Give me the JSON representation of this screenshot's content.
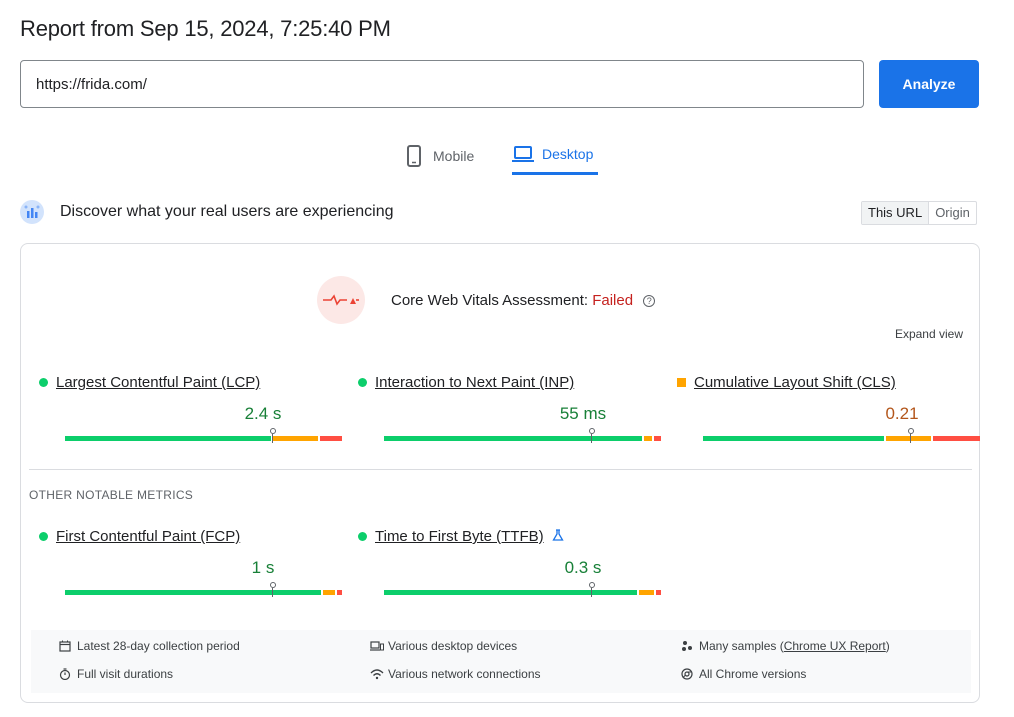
{
  "header": {
    "title": "Report from Sep 15, 2024, 7:25:40 PM"
  },
  "search": {
    "value": "https://frida.com/",
    "analyze_label": "Analyze"
  },
  "tabs": [
    {
      "label": "Mobile",
      "icon": "phone-icon",
      "active": false
    },
    {
      "label": "Desktop",
      "icon": "laptop-icon",
      "active": true
    }
  ],
  "discover": {
    "text": "Discover what your real users are experiencing",
    "icon": "users-chart-icon"
  },
  "scope_toggle": {
    "options": [
      "This URL",
      "Origin"
    ],
    "selected": "This URL"
  },
  "assessment": {
    "label": "Core Web Vitals Assessment:",
    "status": "Failed",
    "status_color": "#c5221f"
  },
  "expand_label": "Expand view",
  "core_metrics": [
    {
      "name": "Largest Contentful Paint (LCP)",
      "value": "2.4 s",
      "rating": "good",
      "distribution": {
        "good": 0.75,
        "needs_improvement": 0.17,
        "poor": 0.08
      },
      "p75": 0.75
    },
    {
      "name": "Interaction to Next Paint (INP)",
      "value": "55 ms",
      "rating": "good",
      "distribution": {
        "good": 0.94,
        "needs_improvement": 0.035,
        "poor": 0.025
      },
      "p75": 0.75
    },
    {
      "name": "Cumulative Layout Shift (CLS)",
      "value": "0.21",
      "rating": "needs_improvement",
      "distribution": {
        "good": 0.66,
        "needs_improvement": 0.17,
        "poor": 0.17
      },
      "p75": 0.75
    }
  ],
  "other_label": "OTHER NOTABLE METRICS",
  "other_metrics": [
    {
      "name": "First Contentful Paint (FCP)",
      "value": "1 s",
      "rating": "good",
      "distribution": {
        "good": 0.93,
        "needs_improvement": 0.05,
        "poor": 0.02
      },
      "p75": 0.75
    },
    {
      "name": "Time to First Byte (TTFB)",
      "value": "0.3 s",
      "rating": "good",
      "experimental_icon": "flask-icon",
      "distribution": {
        "good": 0.92,
        "needs_improvement": 0.06,
        "poor": 0.02
      },
      "p75": 0.75
    }
  ],
  "footer": {
    "collection_period": "Latest 28-day collection period",
    "devices": "Various desktop devices",
    "samples_prefix": "Many samples (",
    "samples_link": "Chrome UX Report",
    "samples_suffix": ")",
    "durations": "Full visit durations",
    "network": "Various network connections",
    "versions": "All Chrome versions"
  },
  "colors": {
    "good": "#0cce6b",
    "needs_improvement": "#ffa400",
    "poor": "#ff4e42",
    "accent": "#1a73e8"
  }
}
